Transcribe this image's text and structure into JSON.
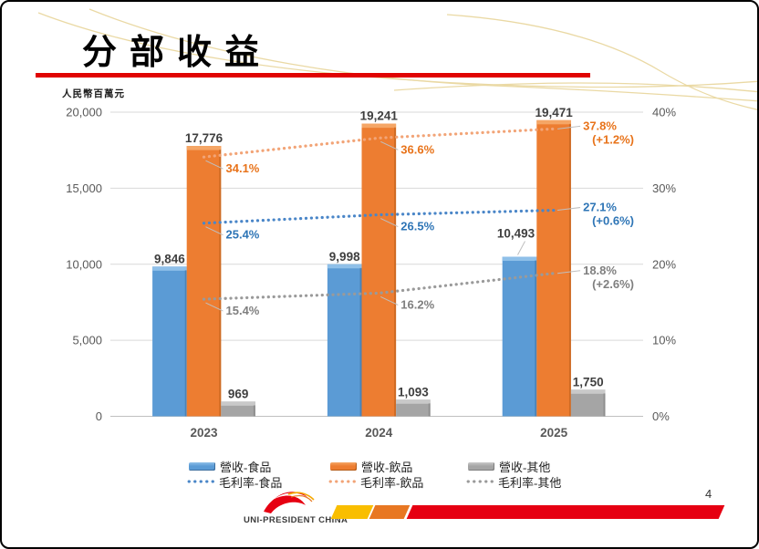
{
  "title": "分部收益",
  "unit_label": "人民幣百萬元",
  "page_number": "4",
  "footer": {
    "logo_text": "UNI-PRESIDENT CHINA"
  },
  "accent_colors": {
    "underline_red": "#e00302",
    "ribbon_yellow": "#f9be00",
    "ribbon_orange": "#e87722",
    "ribbon_red": "#e60012",
    "decor_gold": "#e9d7a0"
  },
  "chart_data": {
    "type": "bar+line combo",
    "title": "分部收益",
    "categories": [
      "2023",
      "2024",
      "2025"
    ],
    "left_axis": {
      "label": "人民幣百萬元",
      "ticks": [
        "20,000",
        "15,000",
        "10,000",
        "5,000",
        "0"
      ],
      "max": 20000,
      "min": 0,
      "grid": true
    },
    "right_axis": {
      "ticks": [
        "40%",
        "30%",
        "20%",
        "10%",
        "0%"
      ],
      "max": 40,
      "min": 0
    },
    "bar_series": [
      {
        "name": "營收-食品",
        "color": "#5b9bd5",
        "color_light": "#8fc0e9",
        "color_dark": "#3e6f9e",
        "values": [
          9846,
          9998,
          10493
        ],
        "labels": [
          "9,846",
          "9,998",
          "10,493"
        ]
      },
      {
        "name": "營收-飲品",
        "color": "#ed7d31",
        "color_light": "#f5a666",
        "color_dark": "#b55b17",
        "values": [
          17776,
          19241,
          19471
        ],
        "labels": [
          "17,776",
          "19,241",
          "19,471"
        ]
      },
      {
        "name": "營收-其他",
        "color": "#a5a5a5",
        "color_light": "#c9c9c9",
        "color_dark": "#7e7e7e",
        "values": [
          969,
          1093,
          1750
        ],
        "labels": [
          "969",
          "1,093",
          "1,750"
        ]
      }
    ],
    "line_series": [
      {
        "name": "毛利率-食品",
        "color": "#4a86c8",
        "label_color": "#2e75b6",
        "values": [
          25.4,
          26.5,
          27.1
        ],
        "labels": [
          "25.4%",
          "26.5%",
          "27.1%"
        ],
        "final_delta": "(+0.6%)"
      },
      {
        "name": "毛利率-飲品",
        "color": "#f2a477",
        "label_color": "#e8731a",
        "values": [
          34.1,
          36.6,
          37.8
        ],
        "labels": [
          "34.1%",
          "36.6%",
          "37.8%"
        ],
        "final_delta": "(+1.2%)"
      },
      {
        "name": "毛利率-其他",
        "color": "#9a9a9a",
        "label_color": "#7f7f7f",
        "values": [
          15.4,
          16.2,
          18.8
        ],
        "labels": [
          "15.4%",
          "16.2%",
          "18.8%"
        ],
        "final_delta": "(+2.6%)"
      }
    ],
    "legend_position": "bottom"
  }
}
